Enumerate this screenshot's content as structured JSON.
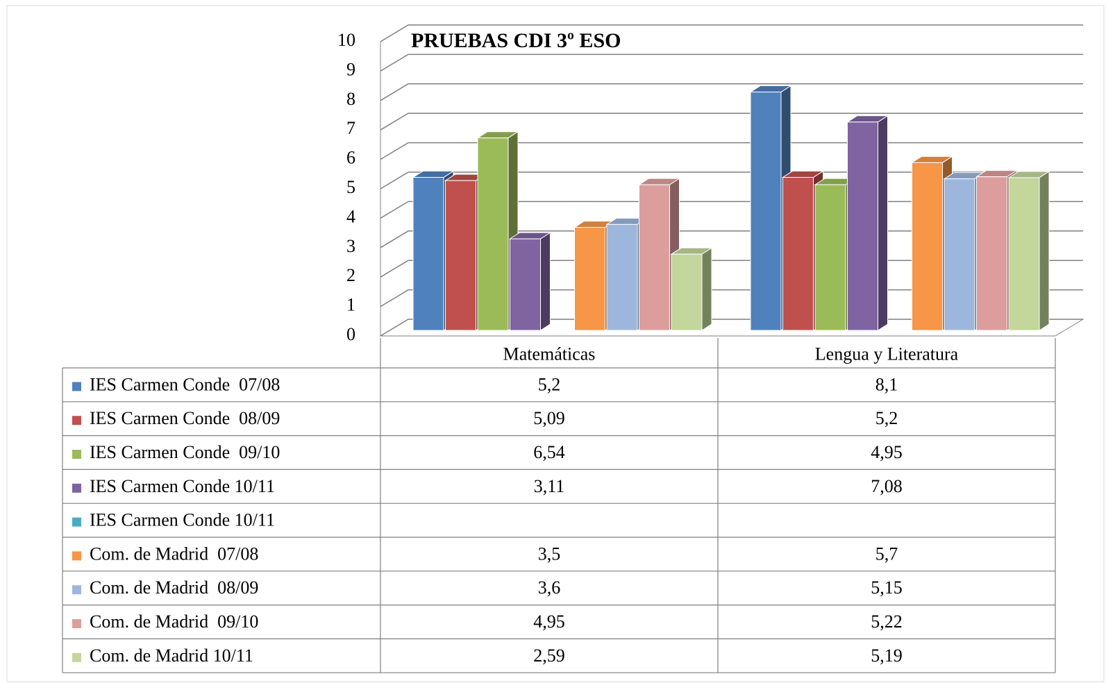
{
  "chart_data": {
    "type": "bar3d",
    "title": "PRUEBAS CDI 3º ESO",
    "categories": [
      "Matemáticas",
      "Lengua y Literatura"
    ],
    "ylim": [
      0,
      10
    ],
    "yticks": [
      0,
      1,
      2,
      3,
      4,
      5,
      6,
      7,
      8,
      9,
      10
    ],
    "grid": true,
    "series": [
      {
        "name": "IES Carmen Conde  07/08",
        "color": "#4f81bd",
        "values": [
          5.2,
          8.1
        ],
        "value_labels": [
          "5,2",
          "8,1"
        ]
      },
      {
        "name": "IES Carmen Conde  08/09",
        "color": "#c0504d",
        "values": [
          5.09,
          5.2
        ],
        "value_labels": [
          "5,09",
          "5,2"
        ]
      },
      {
        "name": "IES Carmen Conde  09/10",
        "color": "#9bbb59",
        "values": [
          6.54,
          4.95
        ],
        "value_labels": [
          "6,54",
          "4,95"
        ]
      },
      {
        "name": "IES Carmen Conde 10/11",
        "color": "#8064a2",
        "values": [
          3.11,
          7.08
        ],
        "value_labels": [
          "3,11",
          "7,08"
        ]
      },
      {
        "name": "IES Carmen Conde 10/11",
        "color": "#4bacc6",
        "values": [
          null,
          null
        ]
      },
      {
        "name": "Com. de Madrid  07/08",
        "color": "#f79646",
        "values": [
          3.5,
          5.7
        ],
        "value_labels": [
          "3,5",
          "5,7"
        ]
      },
      {
        "name": "Com. de Madrid  08/09",
        "color": "#9db6dc",
        "values": [
          3.6,
          5.15
        ],
        "value_labels": [
          "3,6",
          "5,15"
        ]
      },
      {
        "name": "Com. de Madrid  09/10",
        "color": "#dc9e9d",
        "values": [
          4.95,
          5.22
        ],
        "value_labels": [
          "4,95",
          "5,22"
        ]
      },
      {
        "name": "Com. de Madrid 10/11",
        "color": "#c3d69b",
        "values": [
          2.59,
          5.19
        ],
        "value_labels": [
          "2,59",
          "5,19"
        ]
      }
    ]
  }
}
